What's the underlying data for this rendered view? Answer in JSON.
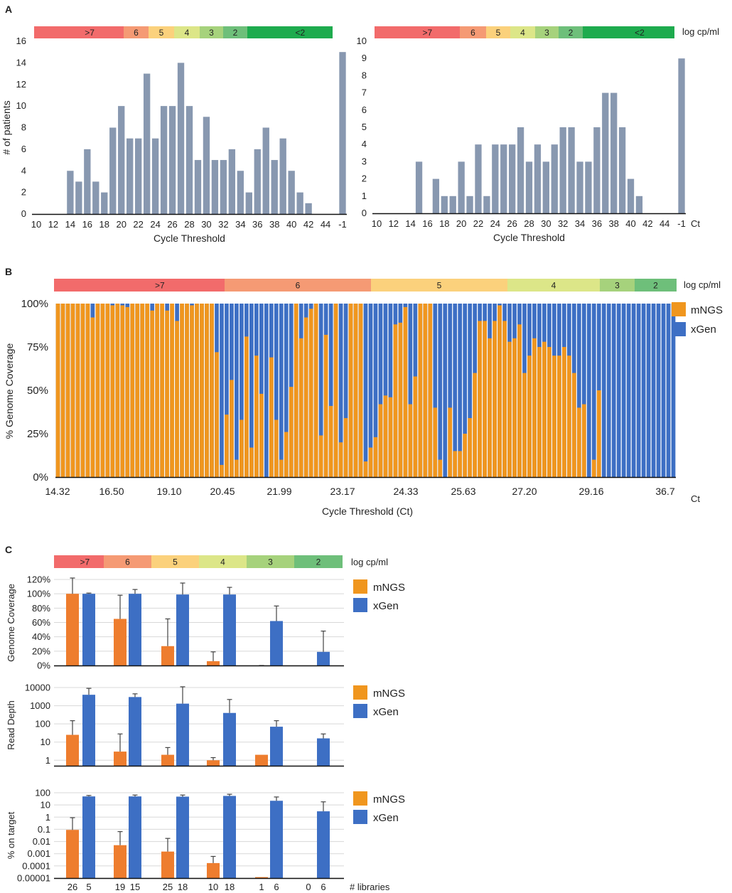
{
  "figure": {
    "panel_labels": [
      "A",
      "B",
      "C"
    ],
    "scale_unit": "log cp/ml",
    "ct_unit": "Ct",
    "libraries_label": "# libraries",
    "colors": {
      "bar_gray": "#8898b0",
      "mngs_b": "#f0961e",
      "mngs_c": "#ee7d2e",
      "xgen": "#3d6fc4",
      "scale_gt7": "#f26b6b",
      "scale_6": "#f59a74",
      "scale_5": "#fbd17c",
      "scale_4": "#dce688",
      "scale_3": "#a6d27c",
      "scale_2": "#6ebf7a",
      "scale_lt2": "#1eab4e"
    }
  },
  "panel_a_scale": {
    "segments": [
      {
        "label": ">7",
        "color": "#f26b6b"
      },
      {
        "label": "6",
        "color": "#f59a74"
      },
      {
        "label": "5",
        "color": "#fbd17c"
      },
      {
        "label": "4",
        "color": "#dce688"
      },
      {
        "label": "3",
        "color": "#a6d27c"
      },
      {
        "label": "2",
        "color": "#6ebf7a"
      },
      {
        "label": "<2",
        "color": "#1eab4e"
      }
    ]
  },
  "panel_b_scale": {
    "segments": [
      {
        "label": ">7",
        "color": "#f26b6b"
      },
      {
        "label": "6",
        "color": "#f59a74"
      },
      {
        "label": "5",
        "color": "#fbd17c"
      },
      {
        "label": "4",
        "color": "#dce688"
      },
      {
        "label": "3",
        "color": "#a6d27c"
      },
      {
        "label": "2",
        "color": "#6ebf7a"
      }
    ]
  },
  "panel_c_scale": {
    "segments": [
      {
        "label": ">7",
        "color": "#f26b6b"
      },
      {
        "label": "6",
        "color": "#f59a74"
      },
      {
        "label": "5",
        "color": "#fbd17c"
      },
      {
        "label": "4",
        "color": "#dce688"
      },
      {
        "label": "3",
        "color": "#a6d27c"
      },
      {
        "label": "2",
        "color": "#6ebf7a"
      }
    ]
  },
  "chart_data": [
    {
      "id": "A-left",
      "type": "bar",
      "xlabel": "Cycle Threshold",
      "ylabel": "# of patients",
      "ylim": [
        0,
        16
      ],
      "yticks": [
        0,
        2,
        4,
        6,
        8,
        10,
        12,
        14,
        16
      ],
      "tick_labels": [
        "10",
        "12",
        "14",
        "16",
        "18",
        "20",
        "22",
        "24",
        "26",
        "28",
        "30",
        "32",
        "34",
        "36",
        "38",
        "40",
        "42",
        "44",
        "-1"
      ],
      "values": [
        0,
        0,
        0,
        0,
        4,
        3,
        6,
        3,
        2,
        8,
        10,
        7,
        7,
        13,
        7,
        10,
        10,
        14,
        10,
        5,
        9,
        5,
        5,
        6,
        4,
        2,
        6,
        8,
        5,
        7,
        4,
        2,
        1,
        0,
        0,
        0,
        15
      ]
    },
    {
      "id": "A-right",
      "type": "bar",
      "xlabel": "Cycle Threshold",
      "ylabel": "",
      "ylim": [
        0,
        10
      ],
      "yticks": [
        0,
        1,
        2,
        3,
        4,
        5,
        6,
        7,
        8,
        9,
        10
      ],
      "tick_labels": [
        "10",
        "12",
        "14",
        "16",
        "18",
        "20",
        "22",
        "24",
        "26",
        "28",
        "30",
        "32",
        "34",
        "36",
        "38",
        "40",
        "42",
        "44",
        "-1"
      ],
      "values": [
        0,
        0,
        0,
        0,
        0,
        3,
        0,
        2,
        1,
        1,
        3,
        1,
        4,
        1,
        4,
        4,
        4,
        5,
        3,
        4,
        3,
        4,
        5,
        5,
        3,
        3,
        5,
        7,
        7,
        5,
        2,
        1,
        0,
        0,
        0,
        0,
        9
      ]
    },
    {
      "id": "B",
      "type": "bar",
      "title": "",
      "xlabel": "Cycle Threshold (Ct)",
      "ylabel": "% Genome Coverage",
      "ylim": [
        0,
        100
      ],
      "ytick_labels": [
        "0%",
        "25%",
        "50%",
        "75%",
        "100%"
      ],
      "tick_labels": [
        "14.32",
        "16.50",
        "19.10",
        "20.45",
        "21.99",
        "23.17",
        "24.33",
        "25.63",
        "27.20",
        "29.16",
        "36.7"
      ],
      "legend": [
        "mNGS",
        "xGen"
      ],
      "series": [
        {
          "name": "mNGS",
          "values": [
            100,
            100,
            100,
            100,
            100,
            100,
            100,
            92,
            100,
            100,
            100,
            99,
            100,
            99,
            98,
            100,
            100,
            100,
            100,
            96,
            100,
            100,
            96,
            100,
            90,
            100,
            100,
            99,
            100,
            100,
            100,
            100,
            72,
            7,
            36,
            56,
            10,
            33,
            81,
            17,
            70,
            48,
            0,
            69,
            33,
            10,
            26,
            52,
            100,
            80,
            92,
            97,
            100,
            24,
            82,
            41,
            100,
            20,
            34,
            100,
            100,
            100,
            9,
            17,
            23,
            42,
            47,
            46,
            88,
            89,
            98,
            42,
            58,
            100,
            100,
            100,
            40,
            10,
            0,
            40,
            15,
            15,
            25,
            34,
            60,
            90,
            90,
            80,
            90,
            99,
            90,
            78,
            80,
            88,
            60,
            70,
            80,
            75,
            78,
            75,
            70,
            70,
            75,
            70,
            60,
            40,
            42,
            0,
            10,
            50,
            0,
            0,
            0,
            0,
            0,
            0,
            0,
            0,
            0,
            0,
            0,
            0,
            0,
            0,
            0
          ]
        },
        {
          "name": "xGen",
          "values": [
            100,
            100,
            100,
            100,
            100,
            100,
            100,
            100,
            100,
            100,
            100,
            100,
            100,
            100,
            100,
            100,
            100,
            100,
            100,
            100,
            100,
            100,
            100,
            100,
            100,
            100,
            100,
            100,
            100,
            100,
            100,
            100,
            100,
            100,
            100,
            100,
            100,
            100,
            100,
            100,
            100,
            100,
            100,
            100,
            100,
            100,
            100,
            100,
            100,
            100,
            100,
            100,
            100,
            100,
            100,
            100,
            100,
            100,
            100,
            100,
            100,
            100,
            100,
            100,
            100,
            100,
            100,
            100,
            100,
            100,
            100,
            100,
            100,
            100,
            100,
            100,
            100,
            100,
            100,
            100,
            100,
            100,
            100,
            100,
            100,
            100,
            100,
            100,
            100,
            100,
            100,
            100,
            100,
            100,
            100,
            100,
            100,
            100,
            100,
            100,
            100,
            100,
            100,
            100,
            100,
            100,
            100,
            100,
            100,
            100,
            100,
            100,
            100,
            100,
            100,
            100,
            100,
            100,
            100,
            100,
            100,
            100,
            100,
            100,
            100
          ]
        }
      ]
    },
    {
      "id": "C-coverage",
      "type": "bar",
      "ylabel": "Genome Coverage",
      "ylim": [
        0,
        120
      ],
      "ytick_labels": [
        "0%",
        "20%",
        "40%",
        "60%",
        "80%",
        "100%",
        "120%"
      ],
      "categories": [
        ">7",
        "6",
        "5",
        "4",
        "3",
        "2"
      ],
      "legend": [
        "mNGS",
        "xGen"
      ],
      "series": [
        {
          "name": "mNGS",
          "values": [
            100,
            65,
            27,
            6,
            0,
            0
          ],
          "error_upper": [
            122,
            98,
            65,
            19,
            0,
            0
          ],
          "error_lower": [
            82,
            32,
            0,
            0,
            0,
            0
          ]
        },
        {
          "name": "xGen",
          "values": [
            100,
            100,
            99,
            99,
            62,
            19
          ],
          "error_upper": [
            101,
            106,
            115,
            109,
            83,
            48
          ],
          "error_lower": [
            99,
            94,
            83,
            89,
            41,
            0
          ]
        }
      ]
    },
    {
      "id": "C-readdepth",
      "type": "bar",
      "ylabel": "Read Depth",
      "yscale": "log",
      "ylim": [
        0.5,
        10000
      ],
      "ytick_labels": [
        "1",
        "10",
        "100",
        "1000",
        "10000"
      ],
      "categories": [
        ">7",
        "6",
        "5",
        "4",
        "3",
        "2"
      ],
      "legend": [
        "mNGS",
        "xGen"
      ],
      "series": [
        {
          "name": "mNGS",
          "values": [
            25,
            3,
            2,
            1,
            2,
            null
          ],
          "error_upper": [
            150,
            28,
            5,
            1.4,
            null,
            null
          ]
        },
        {
          "name": "xGen",
          "values": [
            4000,
            3000,
            1300,
            400,
            70,
            16
          ],
          "error_upper": [
            9000,
            4500,
            11000,
            2200,
            150,
            28
          ]
        }
      ]
    },
    {
      "id": "C-ontarget",
      "type": "bar",
      "ylabel": "% on target",
      "yscale": "log",
      "ylim": [
        1e-05,
        100
      ],
      "ytick_labels": [
        "0.00001",
        "0.0001",
        "0.001",
        "0.01",
        "0.1",
        "1",
        "10",
        "100"
      ],
      "categories": [
        ">7",
        "6",
        "5",
        "4",
        "3",
        "2"
      ],
      "legend": [
        "mNGS",
        "xGen"
      ],
      "series": [
        {
          "name": "mNGS",
          "values": [
            0.09,
            0.005,
            0.0015,
            0.00017,
            1.2e-05,
            null
          ],
          "error_upper": [
            0.9,
            0.065,
            0.018,
            0.0006,
            null,
            null
          ]
        },
        {
          "name": "xGen",
          "values": [
            50,
            50,
            48,
            55,
            22,
            3
          ],
          "error_upper": [
            60,
            65,
            65,
            75,
            45,
            18
          ]
        }
      ],
      "libraries": {
        "mNGS": [
          "26",
          "19",
          "25",
          "10",
          "1",
          "0"
        ],
        "xGen": [
          "5",
          "15",
          "18",
          "18",
          "6",
          "6"
        ]
      }
    }
  ]
}
